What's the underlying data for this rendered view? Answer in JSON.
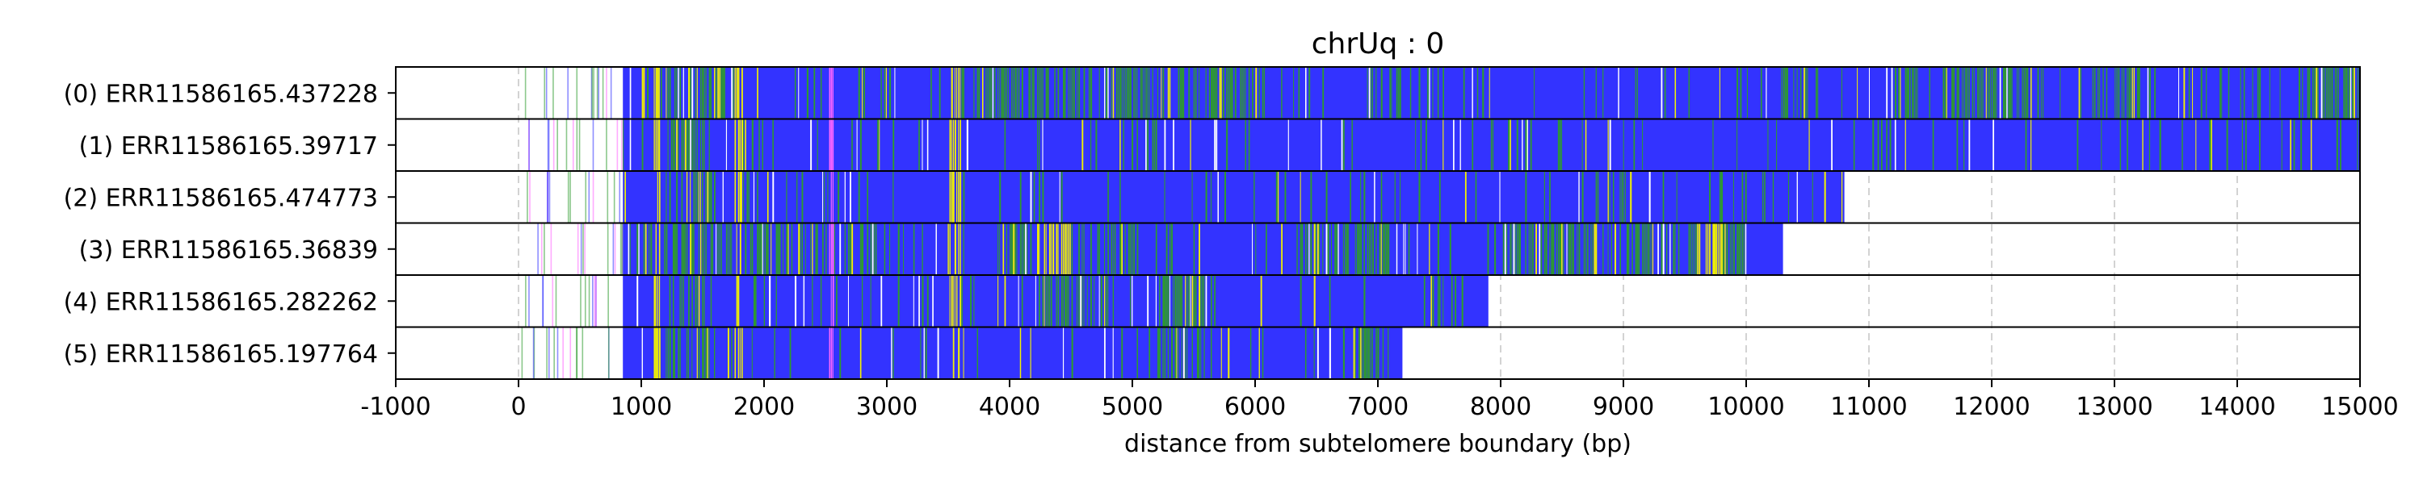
{
  "chart_data": {
    "type": "bar",
    "title": "chrUq : 0",
    "xlabel": "distance from subtelomere boundary (bp)",
    "ylabel": "",
    "xlim": [
      -1000,
      15000
    ],
    "xticks": [
      -1000,
      0,
      1000,
      2000,
      3000,
      4000,
      5000,
      6000,
      7000,
      8000,
      9000,
      10000,
      11000,
      12000,
      13000,
      14000,
      15000
    ],
    "xtick_labels": [
      "-1000",
      "0",
      "1000",
      "2000",
      "3000",
      "4000",
      "5000",
      "6000",
      "7000",
      "8000",
      "9000",
      "10000",
      "11000",
      "12000",
      "13000",
      "14000",
      "15000"
    ],
    "grid": "vertical dashed",
    "colors": {
      "blue": "#3333ff",
      "green": "#2e9a2e",
      "yellow": "#f2f200",
      "magenta": "#ff66ff",
      "grid": "#c8c8c8"
    },
    "categories": [
      "(0) ERR11586165.437228",
      "(1) ERR11586165.39717",
      "(2) ERR11586165.474773",
      "(3) ERR11586165.36839",
      "(4) ERR11586165.282262",
      "(5) ERR11586165.197764"
    ],
    "reads": [
      {
        "label": "(0) ERR11586165.437228",
        "start": 0,
        "end": 15000,
        "dense_start": 850,
        "green_regions": [
          [
            1200,
            1700
          ],
          [
            2400,
            2500
          ],
          [
            3700,
            6100
          ],
          [
            6900,
            7200
          ],
          [
            10300,
            10500
          ],
          [
            11200,
            11400
          ],
          [
            11600,
            12300
          ],
          [
            12800,
            13200
          ],
          [
            14500,
            15000
          ]
        ],
        "yellow_regions": [
          [
            3500,
            3600
          ],
          [
            1750,
            1830
          ],
          [
            1100,
            1150
          ]
        ],
        "magenta_regions": [
          [
            2520,
            2560
          ]
        ]
      },
      {
        "label": "(1) ERR11586165.39717",
        "start": 0,
        "end": 15000,
        "dense_start": 850,
        "green_regions": [
          [
            1200,
            1600
          ]
        ],
        "yellow_regions": [
          [
            3500,
            3600
          ],
          [
            1750,
            1830
          ],
          [
            1100,
            1150
          ]
        ],
        "magenta_regions": [
          [
            2520,
            2560
          ]
        ]
      },
      {
        "label": "(2) ERR11586165.474773",
        "start": 0,
        "end": 10800,
        "dense_start": 850,
        "green_regions": [
          [
            1200,
            1600
          ]
        ],
        "yellow_regions": [
          [
            3500,
            3600
          ],
          [
            1750,
            1830
          ],
          [
            1100,
            1150
          ]
        ],
        "magenta_regions": [
          [
            2520,
            2560
          ]
        ]
      },
      {
        "label": "(3) ERR11586165.36839",
        "start": 0,
        "end": 10300,
        "dense_start": 850,
        "green_regions": [
          [
            1000,
            2900
          ],
          [
            4000,
            5000
          ],
          [
            6300,
            7100
          ],
          [
            8000,
            10000
          ]
        ],
        "yellow_regions": [
          [
            3500,
            3620
          ],
          [
            4200,
            4500
          ],
          [
            9600,
            9800
          ],
          [
            1750,
            1830
          ],
          [
            1100,
            1150
          ]
        ],
        "magenta_regions": [
          [
            2520,
            2560
          ]
        ]
      },
      {
        "label": "(4) ERR11586165.282262",
        "start": 0,
        "end": 7900,
        "dense_start": 850,
        "green_regions": [
          [
            1200,
            1600
          ],
          [
            4200,
            4800
          ],
          [
            5200,
            5600
          ]
        ],
        "yellow_regions": [
          [
            3500,
            3600
          ],
          [
            1750,
            1830
          ],
          [
            1100,
            1150
          ]
        ],
        "magenta_regions": [
          [
            2520,
            2560
          ]
        ]
      },
      {
        "label": "(5) ERR11586165.197764",
        "start": 0,
        "end": 7200,
        "dense_start": 850,
        "green_regions": [
          [
            1200,
            1600
          ],
          [
            5200,
            5600
          ],
          [
            6800,
            7000
          ]
        ],
        "yellow_regions": [
          [
            3500,
            3600
          ],
          [
            1750,
            1830
          ],
          [
            1100,
            1150
          ]
        ],
        "magenta_regions": [
          [
            2520,
            2560
          ]
        ]
      }
    ]
  }
}
